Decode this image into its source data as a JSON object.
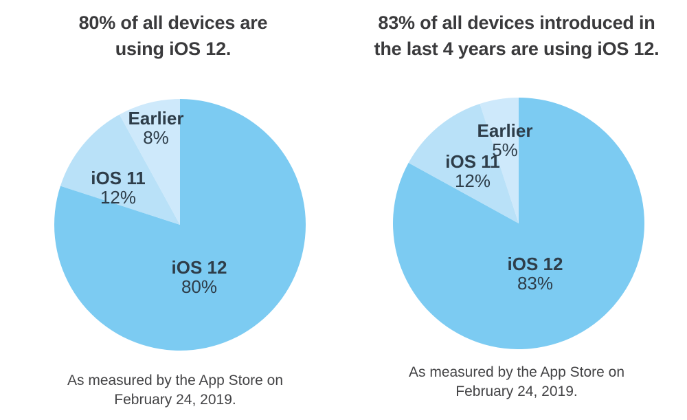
{
  "colors": {
    "background": "#FFFFFF",
    "title_text": "#3A3A3C",
    "label_text": "#2E3D49",
    "caption_text": "#434345",
    "ios12_blue": "#7CCBF2",
    "ios11_blue": "#B9E1F8",
    "earlier_blue": "#CEE9FB"
  },
  "chart_data": [
    {
      "type": "pie",
      "title": "80% of all devices are using iOS 12.",
      "title_lines": [
        "80% of all devices are",
        "using iOS 12."
      ],
      "caption": "As measured by the App Store on February 24, 2019.",
      "caption_lines": [
        "As measured by the App Store on",
        "February 24, 2019."
      ],
      "start_angle_deg": 0,
      "direction": "clockwise",
      "legend_position": "labels-inside",
      "slices": [
        {
          "label": "iOS 12",
          "value": 80,
          "value_label": "80%",
          "color": "#7CCBF2"
        },
        {
          "label": "iOS 11",
          "value": 12,
          "value_label": "12%",
          "color": "#B9E1F8"
        },
        {
          "label": "Earlier",
          "value": 8,
          "value_label": "8%",
          "color": "#CEE9FB"
        }
      ]
    },
    {
      "type": "pie",
      "title": "83% of all devices introduced in the last 4 years are using iOS 12.",
      "title_lines": [
        "83% of all devices introduced in",
        "the last 4 years are using iOS 12."
      ],
      "caption": "As measured by the App Store on February 24, 2019.",
      "caption_lines": [
        "As measured by the App Store on",
        "February 24, 2019."
      ],
      "start_angle_deg": 0,
      "direction": "clockwise",
      "legend_position": "labels-inside",
      "slices": [
        {
          "label": "iOS 12",
          "value": 83,
          "value_label": "83%",
          "color": "#7CCBF2"
        },
        {
          "label": "iOS 11",
          "value": 12,
          "value_label": "12%",
          "color": "#B9E1F8"
        },
        {
          "label": "Earlier",
          "value": 5,
          "value_label": "5%",
          "color": "#CEE9FB"
        }
      ]
    }
  ]
}
